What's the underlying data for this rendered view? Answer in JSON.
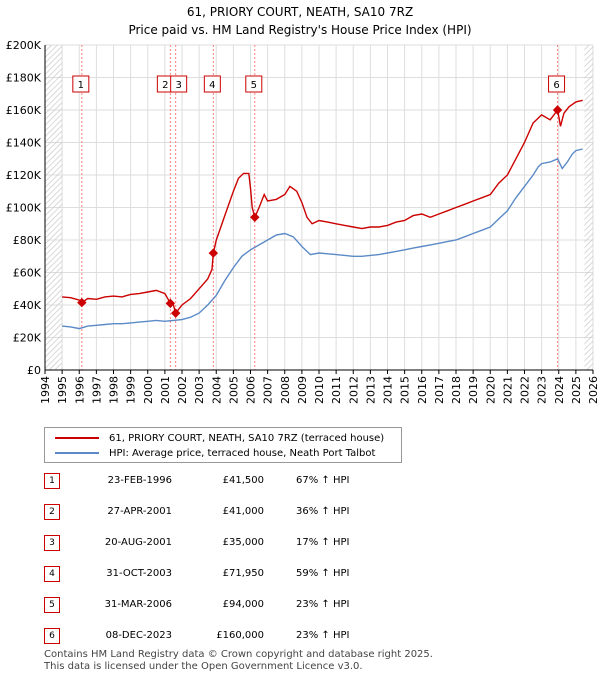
{
  "colors": {
    "property": "#cc0000",
    "hpi": "#5b8ac7",
    "grid": "#dddddd",
    "sale_line": "#ff8080",
    "future_hatch": "#cccccc"
  },
  "chart_data": {
    "type": "line",
    "title": "61, PRIORY COURT, NEATH, SA10 7RZ",
    "subtitle": "Price paid vs. HM Land Registry's House Price Index (HPI)",
    "xlim": [
      1994,
      2026
    ],
    "ylim": [
      0,
      200000
    ],
    "x_ticks": [
      1994,
      1995,
      1996,
      1997,
      1998,
      1999,
      2000,
      2001,
      2002,
      2003,
      2004,
      2005,
      2006,
      2007,
      2008,
      2009,
      2010,
      2011,
      2012,
      2013,
      2014,
      2015,
      2016,
      2017,
      2018,
      2019,
      2020,
      2021,
      2022,
      2023,
      2024,
      2025,
      2026
    ],
    "y_ticks": [
      {
        "value": 0,
        "label": "£0"
      },
      {
        "value": 20000,
        "label": "£20K"
      },
      {
        "value": 40000,
        "label": "£40K"
      },
      {
        "value": 60000,
        "label": "£60K"
      },
      {
        "value": 80000,
        "label": "£80K"
      },
      {
        "value": 100000,
        "label": "£100K"
      },
      {
        "value": 120000,
        "label": "£120K"
      },
      {
        "value": 140000,
        "label": "£140K"
      },
      {
        "value": 160000,
        "label": "£160K"
      },
      {
        "value": 180000,
        "label": "£180K"
      },
      {
        "value": 200000,
        "label": "£200K"
      }
    ],
    "data_start": 1995.0,
    "data_end": 2025.5,
    "series": [
      {
        "name": "61, PRIORY COURT, NEATH, SA10 7RZ (terraced house)",
        "points": [
          [
            1995.0,
            45000
          ],
          [
            1995.5,
            44500
          ],
          [
            1996.0,
            43000
          ],
          [
            1996.15,
            41500
          ],
          [
            1996.5,
            44000
          ],
          [
            1997.0,
            43500
          ],
          [
            1997.5,
            45000
          ],
          [
            1998.0,
            45500
          ],
          [
            1998.5,
            45000
          ],
          [
            1999.0,
            46500
          ],
          [
            1999.5,
            47000
          ],
          [
            2000.0,
            48000
          ],
          [
            2000.5,
            49000
          ],
          [
            2001.0,
            47000
          ],
          [
            2001.32,
            41000
          ],
          [
            2001.5,
            40000
          ],
          [
            2001.63,
            35000
          ],
          [
            2002.0,
            40000
          ],
          [
            2002.5,
            44000
          ],
          [
            2003.0,
            50000
          ],
          [
            2003.5,
            56000
          ],
          [
            2003.75,
            62000
          ],
          [
            2003.83,
            71950
          ],
          [
            2004.0,
            80000
          ],
          [
            2004.5,
            95000
          ],
          [
            2005.0,
            110000
          ],
          [
            2005.3,
            118000
          ],
          [
            2005.6,
            121000
          ],
          [
            2005.9,
            121000
          ],
          [
            2006.0,
            112000
          ],
          [
            2006.1,
            100000
          ],
          [
            2006.25,
            94000
          ],
          [
            2006.5,
            100000
          ],
          [
            2006.8,
            108000
          ],
          [
            2007.0,
            104000
          ],
          [
            2007.5,
            105000
          ],
          [
            2008.0,
            108000
          ],
          [
            2008.3,
            113000
          ],
          [
            2008.7,
            110000
          ],
          [
            2009.0,
            103000
          ],
          [
            2009.3,
            94000
          ],
          [
            2009.6,
            90000
          ],
          [
            2010.0,
            92000
          ],
          [
            2010.5,
            91000
          ],
          [
            2011.0,
            90000
          ],
          [
            2011.5,
            89000
          ],
          [
            2012.0,
            88000
          ],
          [
            2012.5,
            87000
          ],
          [
            2013.0,
            88000
          ],
          [
            2013.5,
            88000
          ],
          [
            2014.0,
            89000
          ],
          [
            2014.5,
            91000
          ],
          [
            2015.0,
            92000
          ],
          [
            2015.5,
            95000
          ],
          [
            2016.0,
            96000
          ],
          [
            2016.5,
            94000
          ],
          [
            2017.0,
            96000
          ],
          [
            2017.5,
            98000
          ],
          [
            2018.0,
            100000
          ],
          [
            2018.5,
            102000
          ],
          [
            2019.0,
            104000
          ],
          [
            2019.5,
            106000
          ],
          [
            2020.0,
            108000
          ],
          [
            2020.5,
            115000
          ],
          [
            2021.0,
            120000
          ],
          [
            2021.5,
            130000
          ],
          [
            2022.0,
            140000
          ],
          [
            2022.5,
            152000
          ],
          [
            2022.8,
            155000
          ],
          [
            2023.0,
            157000
          ],
          [
            2023.5,
            154000
          ],
          [
            2023.93,
            160000
          ],
          [
            2024.1,
            150000
          ],
          [
            2024.3,
            158000
          ],
          [
            2024.6,
            162000
          ],
          [
            2025.0,
            165000
          ],
          [
            2025.4,
            166000
          ]
        ]
      },
      {
        "name": "HPI: Average price, terraced house, Neath Port Talbot",
        "points": [
          [
            1995.0,
            27000
          ],
          [
            1995.5,
            26500
          ],
          [
            1996.0,
            25500
          ],
          [
            1996.5,
            27000
          ],
          [
            1997.0,
            27500
          ],
          [
            1997.5,
            28000
          ],
          [
            1998.0,
            28500
          ],
          [
            1998.5,
            28500
          ],
          [
            1999.0,
            29000
          ],
          [
            1999.5,
            29500
          ],
          [
            2000.0,
            30000
          ],
          [
            2000.5,
            30500
          ],
          [
            2001.0,
            30000
          ],
          [
            2001.5,
            30500
          ],
          [
            2002.0,
            31000
          ],
          [
            2002.5,
            32500
          ],
          [
            2003.0,
            35000
          ],
          [
            2003.5,
            40000
          ],
          [
            2004.0,
            46000
          ],
          [
            2004.5,
            55000
          ],
          [
            2005.0,
            63000
          ],
          [
            2005.5,
            70000
          ],
          [
            2006.0,
            74000
          ],
          [
            2006.5,
            77000
          ],
          [
            2007.0,
            80000
          ],
          [
            2007.5,
            83000
          ],
          [
            2008.0,
            84000
          ],
          [
            2008.5,
            82000
          ],
          [
            2009.0,
            76000
          ],
          [
            2009.5,
            71000
          ],
          [
            2010.0,
            72000
          ],
          [
            2010.5,
            71500
          ],
          [
            2011.0,
            71000
          ],
          [
            2011.5,
            70500
          ],
          [
            2012.0,
            70000
          ],
          [
            2012.5,
            70000
          ],
          [
            2013.0,
            70500
          ],
          [
            2013.5,
            71000
          ],
          [
            2014.0,
            72000
          ],
          [
            2014.5,
            73000
          ],
          [
            2015.0,
            74000
          ],
          [
            2015.5,
            75000
          ],
          [
            2016.0,
            76000
          ],
          [
            2016.5,
            77000
          ],
          [
            2017.0,
            78000
          ],
          [
            2017.5,
            79000
          ],
          [
            2018.0,
            80000
          ],
          [
            2018.5,
            82000
          ],
          [
            2019.0,
            84000
          ],
          [
            2019.5,
            86000
          ],
          [
            2020.0,
            88000
          ],
          [
            2020.5,
            93000
          ],
          [
            2021.0,
            98000
          ],
          [
            2021.5,
            106000
          ],
          [
            2022.0,
            113000
          ],
          [
            2022.5,
            120000
          ],
          [
            2022.8,
            125000
          ],
          [
            2023.0,
            127000
          ],
          [
            2023.5,
            128000
          ],
          [
            2023.93,
            130000
          ],
          [
            2024.2,
            124000
          ],
          [
            2024.5,
            128000
          ],
          [
            2024.8,
            133000
          ],
          [
            2025.0,
            135000
          ],
          [
            2025.4,
            136000
          ]
        ]
      }
    ],
    "sales": [
      {
        "label": "1",
        "x": 1996.15,
        "price": 41500,
        "date": "23-FEB-1996",
        "price_label": "£41,500",
        "hpi": "67% ↑ HPI"
      },
      {
        "label": "2",
        "x": 2001.32,
        "price": 41000,
        "date": "27-APR-2001",
        "price_label": "£41,000",
        "hpi": "36% ↑ HPI"
      },
      {
        "label": "3",
        "x": 2001.63,
        "price": 35000,
        "date": "20-AUG-2001",
        "price_label": "£35,000",
        "hpi": "17% ↑ HPI"
      },
      {
        "label": "4",
        "x": 2003.83,
        "price": 71950,
        "date": "31-OCT-2003",
        "price_label": "£71,950",
        "hpi": "59% ↑ HPI"
      },
      {
        "label": "5",
        "x": 2006.25,
        "price": 94000,
        "date": "31-MAR-2006",
        "price_label": "£94,000",
        "hpi": "23% ↑ HPI"
      },
      {
        "label": "6",
        "x": 2023.93,
        "price": 160000,
        "date": "08-DEC-2023",
        "price_label": "£160,000",
        "hpi": "23% ↑ HPI"
      }
    ]
  },
  "legend": {
    "property": "61, PRIORY COURT, NEATH, SA10 7RZ (terraced house)",
    "hpi": "HPI: Average price, terraced house, Neath Port Talbot"
  },
  "footer": {
    "line1": "Contains HM Land Registry data © Crown copyright and database right 2025.",
    "line2": "This data is licensed under the Open Government Licence v3.0."
  }
}
